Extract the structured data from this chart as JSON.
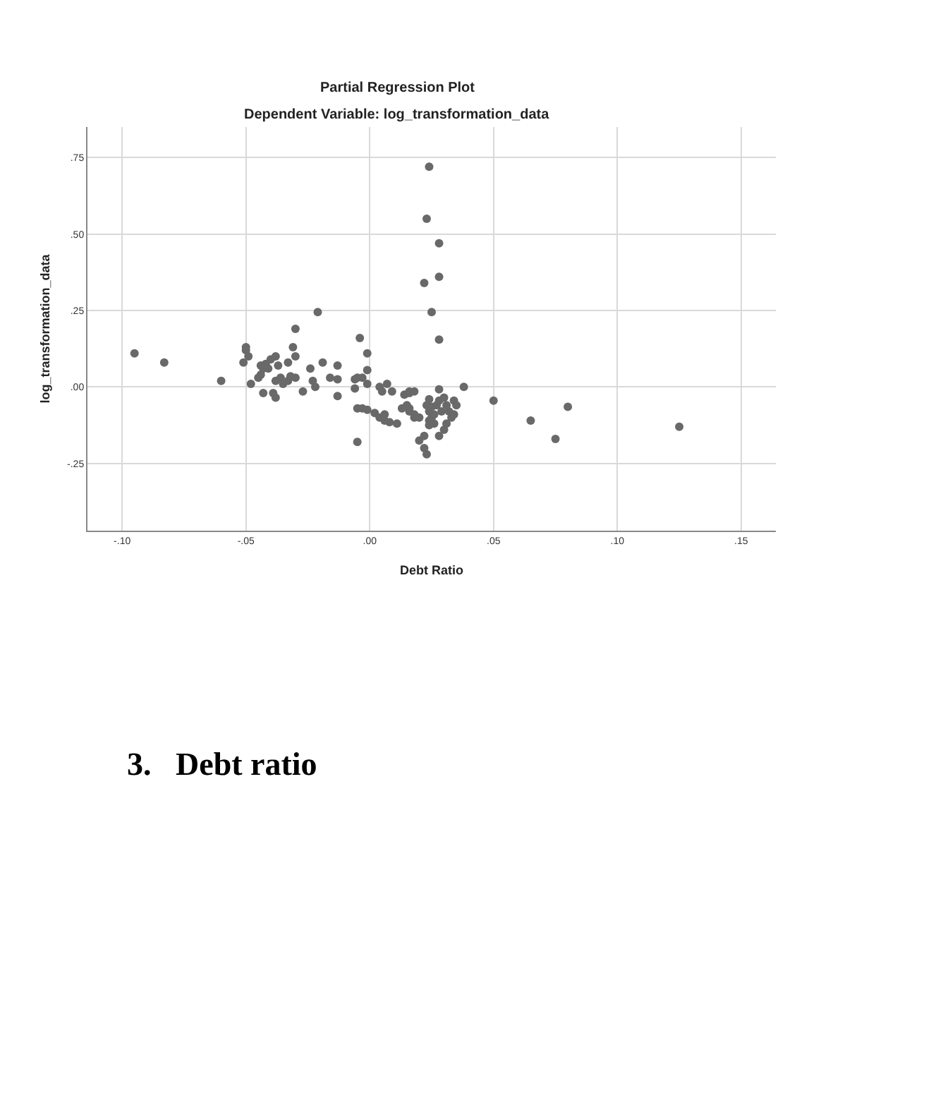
{
  "chart_data": {
    "type": "scatter",
    "title": "Partial Regression Plot",
    "subtitle": "Dependent Variable: log_transformation_data",
    "xlabel": "Debt Ratio",
    "ylabel": "log_transformation_data",
    "annotations": [
      "3.   Debt ratio"
    ],
    "xlim": [
      -0.114,
      0.164
    ],
    "ylim": [
      -0.47,
      0.85
    ],
    "xticks": [
      {
        "value": -0.1,
        "label": "-.10"
      },
      {
        "value": -0.05,
        "label": "-.05"
      },
      {
        "value": 0,
        "label": ".00"
      },
      {
        "value": 0.05,
        "label": ".05"
      },
      {
        "value": 0.1,
        "label": ".10"
      },
      {
        "value": 0.15,
        "label": ".15"
      }
    ],
    "yticks": [
      {
        "value": -0.25,
        "label": "-.25"
      },
      {
        "value": 0,
        "label": ".00"
      },
      {
        "value": 0.25,
        "label": ".25"
      },
      {
        "value": 0.5,
        "label": ".50"
      },
      {
        "value": 0.75,
        "label": ".75"
      }
    ],
    "grid": true,
    "marker": "circle",
    "series": [
      {
        "color": "#696969",
        "x": [
          -0.095,
          -0.083,
          -0.06,
          -0.05,
          -0.05,
          -0.049,
          -0.051,
          -0.048,
          -0.043,
          -0.045,
          -0.044,
          -0.042,
          -0.04,
          -0.038,
          -0.043,
          -0.041,
          -0.044,
          -0.037,
          -0.038,
          -0.038,
          -0.039,
          -0.036,
          -0.035,
          -0.033,
          -0.033,
          -0.032,
          -0.031,
          -0.03,
          -0.03,
          -0.03,
          -0.027,
          -0.024,
          -0.023,
          -0.022,
          -0.021,
          -0.019,
          -0.016,
          -0.013,
          -0.013,
          -0.013,
          -0.006,
          -0.006,
          -0.005,
          -0.005,
          -0.004,
          -0.001,
          -0.001,
          -0.003,
          -0.001,
          -0.005,
          -0.003,
          -0.001,
          0.002,
          0.004,
          0.006,
          0.006,
          0.008,
          0.011,
          0.004,
          0.005,
          0.007,
          0.009,
          0.014,
          0.016,
          0.013,
          0.015,
          0.016,
          0.018,
          0.024,
          0.023,
          0.028,
          0.028,
          0.022,
          0.025,
          0.028,
          0.028,
          0.038,
          0.05,
          0.065,
          0.075,
          0.08,
          0.125,
          0.016,
          0.018,
          0.016,
          0.018,
          0.02,
          0.02,
          0.022,
          0.023,
          0.022,
          0.023,
          0.024,
          0.024,
          0.025,
          0.026,
          0.024,
          0.026,
          0.027,
          0.028,
          0.029,
          0.028,
          0.03,
          0.03,
          0.031,
          0.031,
          0.032,
          0.033,
          0.034,
          0.034,
          0.035,
          0.024,
          0.025
        ],
        "values": [
          0.11,
          0.08,
          0.02,
          0.13,
          0.12,
          0.1,
          0.08,
          0.01,
          -0.02,
          0.03,
          0.07,
          0.075,
          0.09,
          0.1,
          0.06,
          0.06,
          0.04,
          0.07,
          0.02,
          -0.035,
          -0.02,
          0.03,
          0.01,
          0.08,
          0.02,
          0.035,
          0.13,
          0.19,
          0.1,
          0.03,
          -0.015,
          0.06,
          0.02,
          0.0,
          0.245,
          0.08,
          0.03,
          0.07,
          0.025,
          -0.03,
          0.025,
          -0.005,
          0.03,
          -0.18,
          0.16,
          0.11,
          0.055,
          0.03,
          0.01,
          -0.07,
          -0.07,
          -0.075,
          -0.085,
          -0.1,
          -0.09,
          -0.11,
          -0.115,
          -0.12,
          0.0,
          -0.015,
          0.01,
          -0.015,
          -0.025,
          -0.015,
          -0.07,
          -0.06,
          -0.08,
          -0.1,
          0.72,
          0.55,
          0.47,
          0.36,
          0.34,
          0.245,
          0.155,
          -0.008,
          0.0,
          -0.045,
          -0.11,
          -0.17,
          -0.065,
          -0.13,
          -0.02,
          -0.015,
          -0.07,
          -0.09,
          -0.1,
          -0.175,
          -0.2,
          -0.22,
          -0.16,
          -0.06,
          -0.04,
          -0.08,
          -0.1,
          -0.12,
          -0.125,
          -0.09,
          -0.06,
          -0.045,
          -0.08,
          -0.16,
          -0.14,
          -0.035,
          -0.06,
          -0.12,
          -0.08,
          -0.1,
          -0.045,
          -0.09,
          -0.06,
          -0.11,
          -0.065
        ]
      }
    ]
  }
}
